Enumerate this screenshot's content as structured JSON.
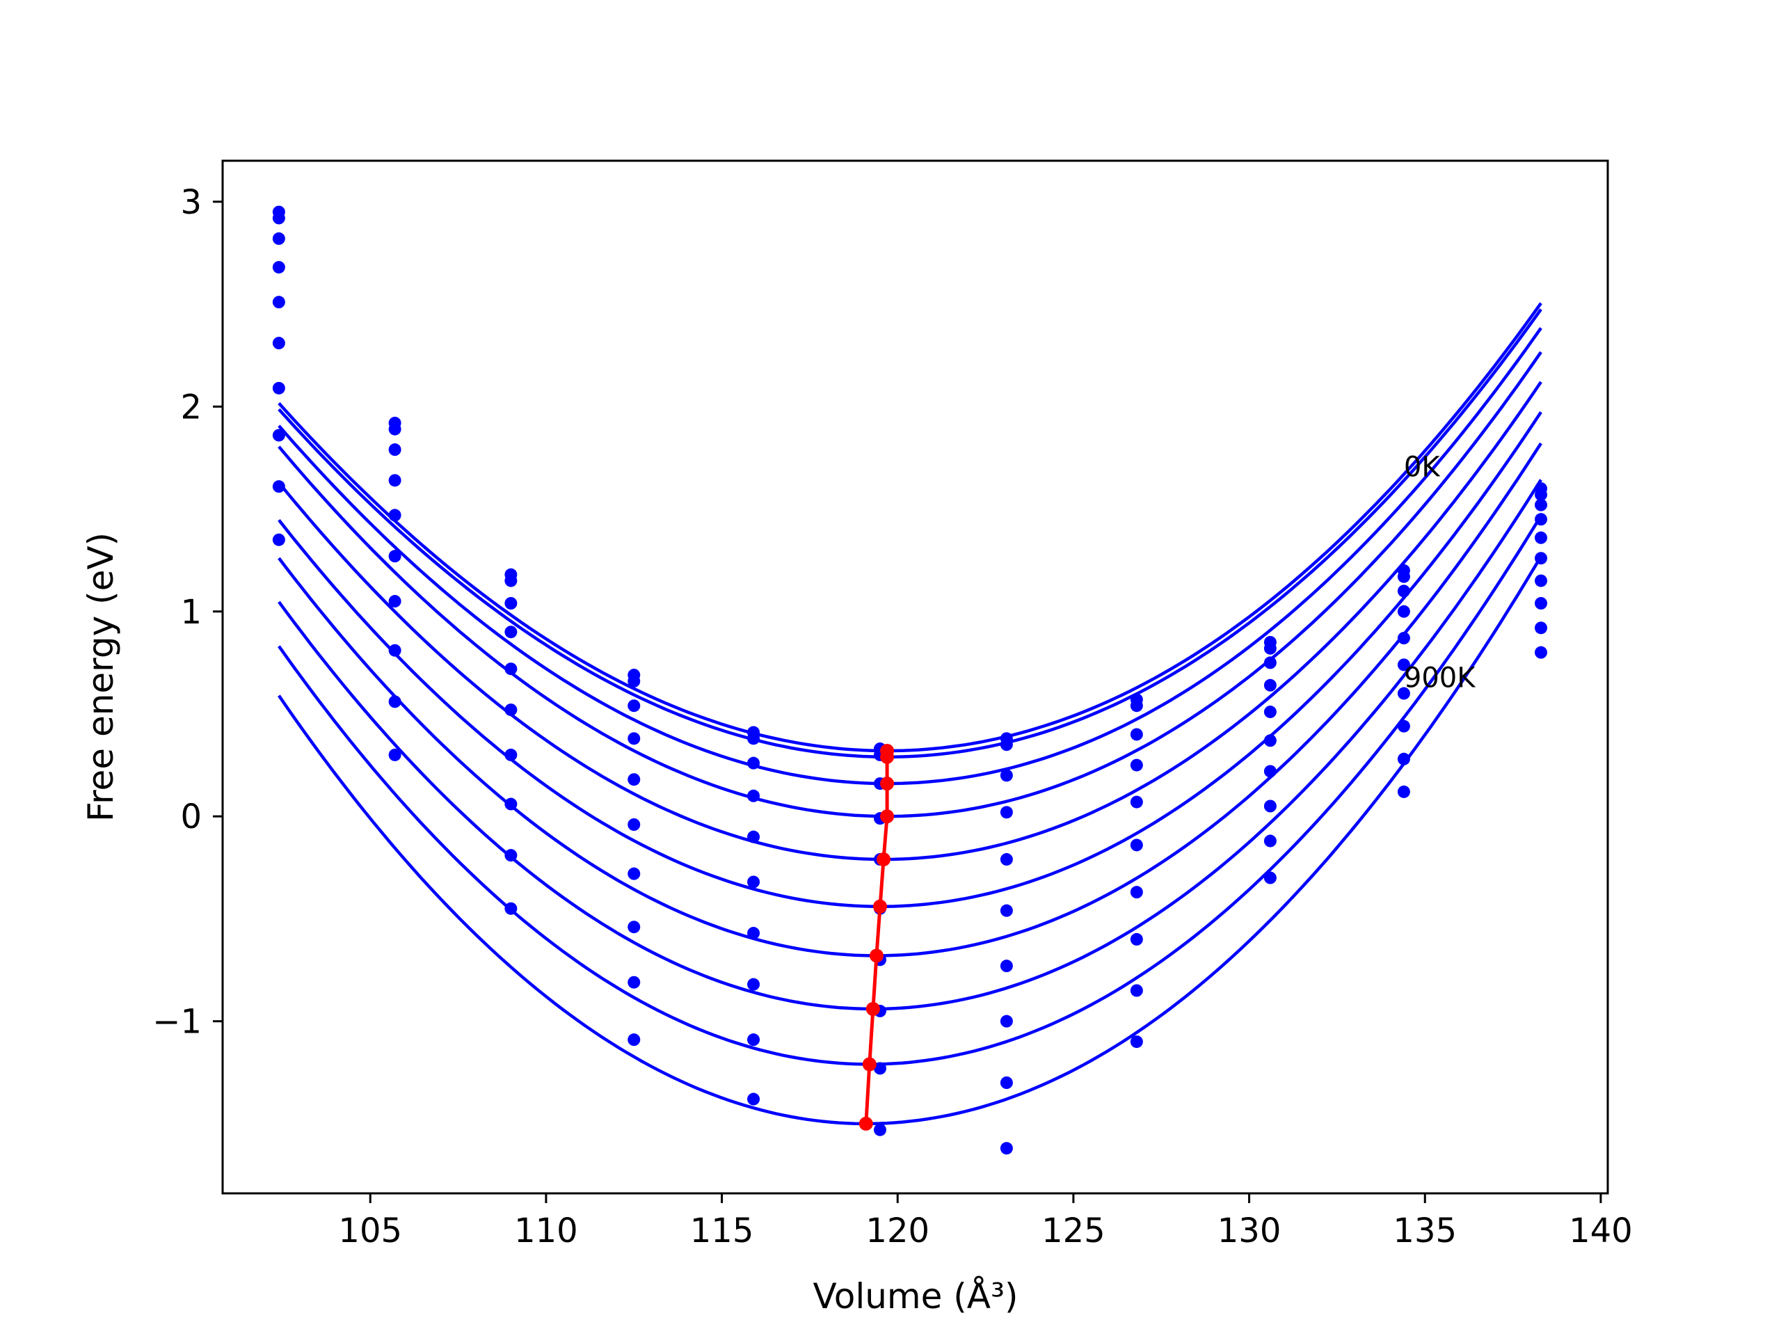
{
  "chart_data": {
    "type": "line",
    "title": "",
    "xlabel": "Volume (Å³)",
    "ylabel": "Free energy (eV)",
    "xlim": [
      100.8,
      140.2
    ],
    "ylim": [
      -1.84,
      3.2
    ],
    "xticks": [
      105,
      110,
      115,
      120,
      125,
      130,
      135,
      140
    ],
    "yticks": [
      -1,
      0,
      1,
      2,
      3
    ],
    "grid": false,
    "legend": "none",
    "colors": {
      "curves": "#0000ff",
      "minima": "#ff0000",
      "frame": "#000000"
    },
    "annotations": [
      {
        "text": "0K",
        "x": 134.4,
        "y": 1.66
      },
      {
        "text": "900K",
        "x": 134.4,
        "y": 0.63
      }
    ],
    "x_samples": [
      102.4,
      105.7,
      109.0,
      112.5,
      115.9,
      119.5,
      123.1,
      126.8,
      130.6,
      134.4,
      138.3
    ],
    "series": [
      {
        "points_y": [
          2.95,
          1.92,
          1.18,
          0.69,
          0.41,
          0.33,
          0.38,
          0.57,
          0.85,
          1.2,
          1.6
        ],
        "fit": {
          "v0": 119.7,
          "e0": 0.32,
          "a": 0.00598,
          "b": 1.8e-05
        }
      },
      {
        "points_y": [
          2.92,
          1.89,
          1.15,
          0.66,
          0.38,
          0.3,
          0.35,
          0.54,
          0.82,
          1.17,
          1.57
        ],
        "fit": {
          "v0": 119.7,
          "e0": 0.29,
          "a": 0.00598,
          "b": 1.8e-05
        }
      },
      {
        "points_y": [
          2.82,
          1.79,
          1.04,
          0.54,
          0.26,
          0.16,
          0.2,
          0.4,
          0.75,
          1.1,
          1.52
        ],
        "fit": {
          "v0": 119.7,
          "e0": 0.16,
          "a": 0.00612,
          "b": 1.65e-05
        }
      },
      {
        "points_y": [
          2.68,
          1.64,
          0.9,
          0.38,
          0.1,
          -0.01,
          0.02,
          0.25,
          0.64,
          1.0,
          1.45
        ],
        "fit": {
          "v0": 119.7,
          "e0": 0.0,
          "a": 0.00628,
          "b": 1.45e-05
        }
      },
      {
        "points_y": [
          2.51,
          1.47,
          0.72,
          0.18,
          -0.1,
          -0.21,
          -0.21,
          0.07,
          0.51,
          0.87,
          1.36
        ],
        "fit": {
          "v0": 119.6,
          "e0": -0.21,
          "a": 0.00643,
          "b": 1.25e-05
        }
      },
      {
        "points_y": [
          2.31,
          1.27,
          0.52,
          -0.04,
          -0.32,
          -0.45,
          -0.46,
          -0.14,
          0.37,
          0.74,
          1.26
        ],
        "fit": {
          "v0": 119.5,
          "e0": -0.44,
          "a": 0.00663,
          "b": 1.05e-05
        }
      },
      {
        "points_y": [
          2.09,
          1.05,
          0.3,
          -0.28,
          -0.57,
          -0.7,
          -0.73,
          -0.37,
          0.22,
          0.6,
          1.15
        ],
        "fit": {
          "v0": 119.4,
          "e0": -0.68,
          "a": 0.00685,
          "b": 8e-06
        }
      },
      {
        "points_y": [
          1.86,
          0.81,
          0.06,
          -0.54,
          -0.82,
          -0.95,
          -1.0,
          -0.6,
          0.05,
          0.44,
          1.04
        ],
        "fit": {
          "v0": 119.3,
          "e0": -0.94,
          "a": 0.00705,
          "b": 5.5e-06
        }
      },
      {
        "points_y": [
          1.61,
          0.56,
          -0.19,
          -0.81,
          -1.09,
          -1.23,
          -1.3,
          -0.85,
          -0.12,
          0.28,
          0.92
        ],
        "fit": {
          "v0": 119.2,
          "e0": -1.21,
          "a": 0.00728,
          "b": 3e-06
        }
      },
      {
        "points_y": [
          1.35,
          0.3,
          -0.45,
          -1.09,
          -1.38,
          -1.53,
          -1.62,
          -1.1,
          -0.3,
          0.12,
          0.8
        ],
        "fit": {
          "v0": 119.1,
          "e0": -1.5,
          "a": 0.0075,
          "b": 5e-07
        }
      }
    ],
    "minima": {
      "x": [
        119.7,
        119.7,
        119.7,
        119.7,
        119.6,
        119.5,
        119.4,
        119.3,
        119.2,
        119.1
      ],
      "y": [
        0.32,
        0.29,
        0.16,
        0.0,
        -0.21,
        -0.44,
        -0.68,
        -0.94,
        -1.21,
        -1.5
      ]
    }
  }
}
